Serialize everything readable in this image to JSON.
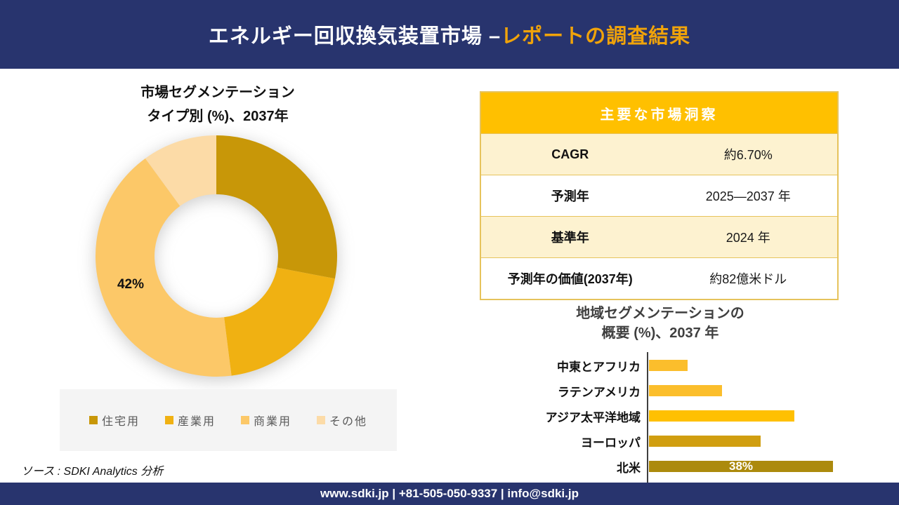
{
  "header": {
    "title_main": "エネルギー回収換気装置市場 –",
    "title_accent": "レポートの調査結果"
  },
  "colors": {
    "navy": "#28346E",
    "accent_gold": "#F0A30A",
    "table_header_gold": "#FFC000",
    "table_row_cream": "#FDF2D0",
    "table_border": "#E6C35C",
    "legend_bg": "#F4F4F4",
    "axis_grey": "#404040"
  },
  "donut_section": {
    "title_line1": "市場セグメンテーション",
    "title_line2": "タイプ別 (%)、2037年",
    "inner_label": "42%"
  },
  "insights_table": {
    "title": "主要な市場洞察",
    "rows": [
      {
        "label": "CAGR",
        "value": "約6.70%"
      },
      {
        "label": "予測年",
        "value": "2025—2037 年"
      },
      {
        "label": "基準年",
        "value": "2024 年"
      },
      {
        "label": "予測年の価値(2037年)",
        "value": "約82億米ドル"
      }
    ]
  },
  "bar_section": {
    "title_line1": "地域セグメンテーションの",
    "title_line2": "概要 (%)、2037 年",
    "data_label": "38%"
  },
  "source_line": "ソース : SDKI Analytics 分析",
  "footer_text": "www.sdki.jp | +81-505-050-9337 | info@sdki.jp",
  "chart_data": [
    {
      "type": "pie",
      "donut": true,
      "title": "市場セグメンテーション タイプ別 (%)、2037年",
      "labels": [
        "住宅用",
        "産業用",
        "商業用",
        "その他"
      ],
      "values": [
        28,
        20,
        42,
        10
      ],
      "colors": [
        "#C89708",
        "#F0B112",
        "#FCC868",
        "#FCDBA7"
      ],
      "shown_data_labels": [
        {
          "segment": "商業用",
          "text": "42%"
        }
      ],
      "legend_position": "bottom",
      "start_angle_deg": 0,
      "direction": "clockwise"
    },
    {
      "type": "bar",
      "orientation": "horizontal",
      "title": "地域セグメンテーションの 概要 (%)、2037 年",
      "categories": [
        "中東とアフリカ",
        "ラテンアメリカ",
        "アジア太平洋地域",
        "ヨーロッパ",
        "北米"
      ],
      "values": [
        8,
        15,
        30,
        23,
        38
      ],
      "colors": [
        "#FBBE2C",
        "#FBBE2C",
        "#FFC002",
        "#D09E10",
        "#AC8A0D"
      ],
      "shown_data_labels": [
        {
          "category": "北米",
          "text": "38%"
        }
      ],
      "xlim": [
        0,
        42
      ],
      "grid": false
    }
  ]
}
